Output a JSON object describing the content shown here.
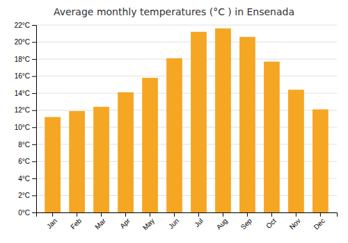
{
  "chart_data": {
    "type": "bar",
    "title": "Average monthly temperatures (°C ) in Ensenada",
    "categories": [
      "Jan",
      "Feb",
      "Mar",
      "Apr",
      "May",
      "Jun",
      "Jul",
      "Aug",
      "Sep",
      "Oct",
      "Nov",
      "Dec"
    ],
    "values": [
      11.2,
      11.9,
      12.4,
      14.1,
      15.8,
      18.1,
      21.2,
      21.6,
      20.6,
      17.7,
      14.4,
      12.1
    ],
    "color": "#F5A623",
    "ylim": [
      0,
      22
    ],
    "yticks": [
      {
        "value": 0,
        "label": "0°C"
      },
      {
        "value": 2,
        "label": "2°C"
      },
      {
        "value": 4,
        "label": "4°C"
      },
      {
        "value": 6,
        "label": "6°C"
      },
      {
        "value": 8,
        "label": "8°C"
      },
      {
        "value": 10,
        "label": "10°C"
      },
      {
        "value": 12,
        "label": "12°C"
      },
      {
        "value": 14,
        "label": "14°C"
      },
      {
        "value": 16,
        "label": "16°C"
      },
      {
        "value": 18,
        "label": "18°C"
      },
      {
        "value": 20,
        "label": "20°C"
      },
      {
        "value": 22,
        "label": "22°C"
      }
    ],
    "grid": true
  }
}
